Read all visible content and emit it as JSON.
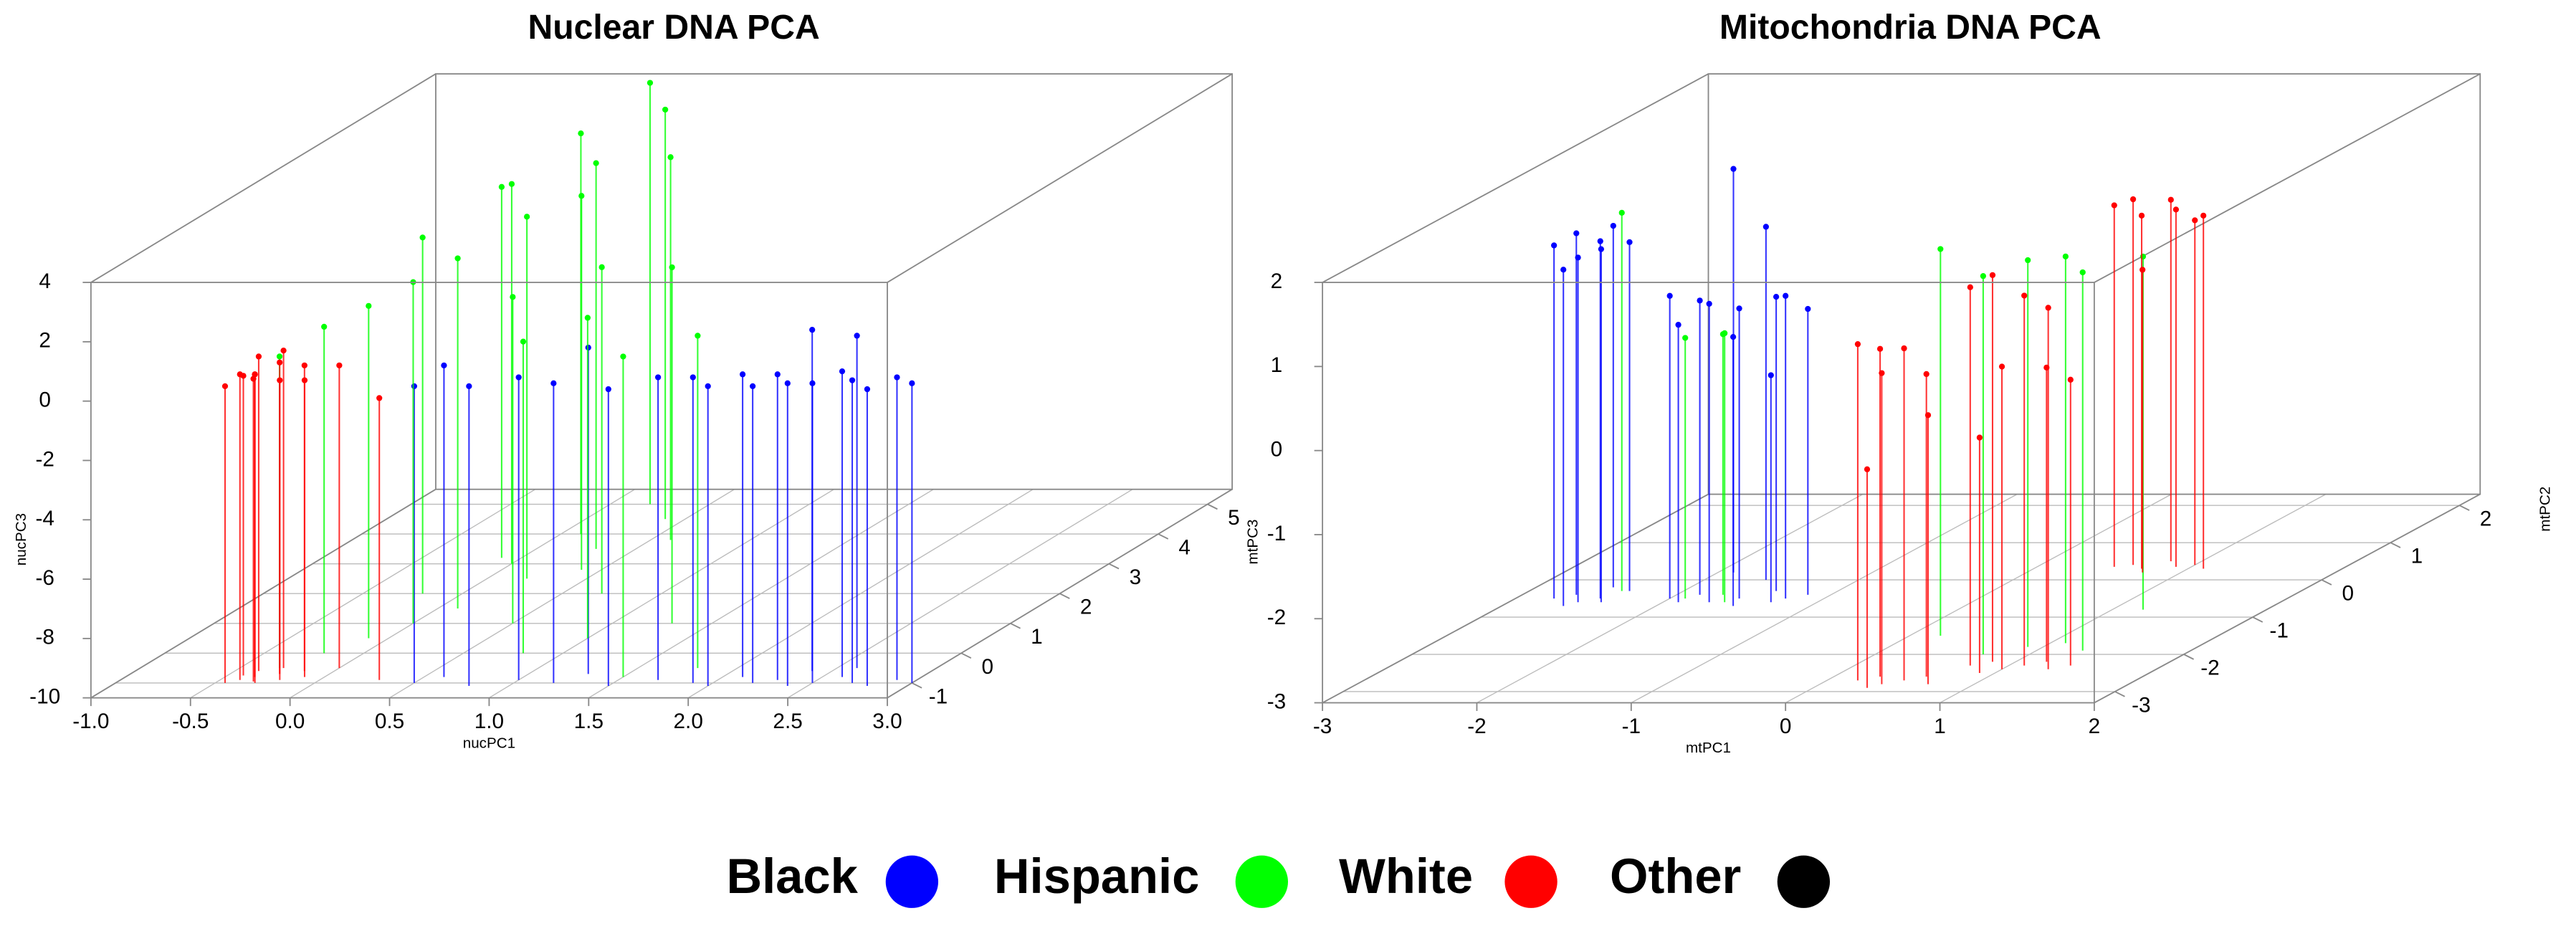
{
  "legend": [
    {
      "name": "Black",
      "color": "#0000ff"
    },
    {
      "name": "Hispanic",
      "color": "#00ff00"
    },
    {
      "name": "White",
      "color": "#ff0000"
    },
    {
      "name": "Other",
      "color": "#000000"
    }
  ],
  "chart_data": [
    {
      "type": "scatter3d",
      "title": "Nuclear DNA PCA",
      "xlabel": "nucPC1",
      "zlabel": "nucPC3",
      "xlim": [
        -1,
        3
      ],
      "ylim": [
        -1.5,
        5.5
      ],
      "zlim": [
        -10,
        4
      ],
      "xticks": [
        {
          "value": -1,
          "label": "-1.0"
        },
        {
          "value": -0.5,
          "label": "-0.5"
        },
        {
          "value": 0,
          "label": "0.0"
        },
        {
          "value": 0.5,
          "label": "0.5"
        },
        {
          "value": 1,
          "label": "1.0"
        },
        {
          "value": 1.5,
          "label": "1.5"
        },
        {
          "value": 2,
          "label": "2.0"
        },
        {
          "value": 2.5,
          "label": "2.5"
        },
        {
          "value": 3,
          "label": "3.0"
        }
      ],
      "yticks": [
        -1,
        0,
        1,
        2,
        3,
        4,
        5
      ],
      "zticks": [
        4,
        2,
        0,
        -2,
        -4,
        -6,
        -8,
        -10
      ],
      "series": [
        {
          "name": "Black",
          "x": [
            0.5,
            0.8,
            1.0,
            1.2,
            1.5,
            1.7,
            1.9,
            2.0,
            2.1,
            2.2,
            2.3,
            2.4,
            2.5,
            2.6,
            2.7,
            2.8,
            2.9,
            3.0,
            1.3,
            2.4,
            2.6,
            0.6
          ],
          "y": [
            -1,
            -1.1,
            -0.9,
            -1,
            -1.1,
            -0.9,
            -1,
            -1.1,
            -0.8,
            -1,
            -0.9,
            -1.1,
            -1,
            -0.8,
            -1,
            -1.1,
            -0.9,
            -1,
            -0.7,
            -0.6,
            -0.5,
            -0.8
          ],
          "z": [
            0,
            0.1,
            0.2,
            0.1,
            0,
            0.2,
            0.3,
            0.1,
            0.2,
            0,
            0.3,
            0.2,
            0.1,
            0.3,
            0.2,
            0,
            0.2,
            0.1,
            1,
            1.5,
            1.2,
            0.5
          ]
        },
        {
          "name": "Hispanic",
          "x": [
            -0.3,
            -0.2,
            -0.1,
            0,
            0.1,
            -0.2,
            0.2,
            0,
            0.3,
            0.1,
            0.4,
            0.2,
            0.5,
            0.7,
            1.0,
            1.3,
            1.8,
            -0.1,
            0.4,
            0.6,
            0.8,
            1.5
          ],
          "y": [
            -0.5,
            0,
            0.5,
            1,
            1.5,
            2,
            2.5,
            3,
            3.5,
            4,
            4.5,
            5,
            1,
            2,
            0.5,
            1,
            -0.5,
            3.2,
            2.8,
            3.8,
            0,
            -0.8
          ],
          "z": [
            0.5,
            1,
            1.2,
            1.5,
            1.8,
            2,
            2.2,
            2.8,
            3,
            3.5,
            3.8,
            4.2,
            1,
            1,
            0.8,
            2,
            1.2,
            2.5,
            2.6,
            2.9,
            0.5,
            0.8
          ]
        },
        {
          "name": "White",
          "x": [
            -0.45,
            -0.4,
            -0.35,
            -0.3,
            -0.25,
            -0.2,
            -0.15,
            -0.38,
            -0.28,
            -0.1,
            0,
            0.3,
            -0.42,
            -0.32
          ],
          "y": [
            -1,
            -0.9,
            -0.8,
            -1,
            -0.7,
            -0.9,
            -0.6,
            -0.6,
            -0.5,
            -0.8,
            -0.5,
            -0.9,
            -0.75,
            -0.95
          ],
          "z": [
            0,
            0.3,
            0.2,
            0.4,
            0.5,
            0.1,
            0.3,
            0.6,
            0.7,
            0,
            0.2,
            -0.5,
            0.1,
            0.2
          ]
        },
        {
          "name": "Other",
          "x": [],
          "y": [],
          "z": []
        }
      ]
    },
    {
      "type": "scatter3d",
      "title": "Mitochondria DNA PCA",
      "xlabel": "mtPC1",
      "ylabel": "mtPC2",
      "zlabel": "mtPC3",
      "xlim": [
        -3,
        2
      ],
      "ylim": [
        -3.3,
        2.3
      ],
      "zlim": [
        -3,
        2
      ],
      "xticks": [
        -3,
        -2,
        -1,
        0,
        1,
        2
      ],
      "yticks": [
        -3,
        -2,
        -1,
        0,
        1,
        2
      ],
      "zticks": [
        2,
        1,
        0,
        -1,
        -2,
        -3
      ],
      "series": [
        {
          "name": "Black",
          "x": [
            -2.75,
            -2.65,
            -2.55,
            -2.45,
            -2.35,
            -2.6,
            -2.5,
            -2.4,
            -1.9,
            -1.6,
            -2.0,
            -1.85,
            -1.7,
            -1.55,
            -1.4,
            -1.25,
            -1.15,
            -1.9,
            -1.5,
            -1.3
          ],
          "y": [
            -0.5,
            -0.4,
            -0.6,
            -0.5,
            -0.3,
            -0.7,
            -0.2,
            -0.6,
            0.2,
            0,
            -0.5,
            -0.4,
            -0.6,
            -0.5,
            -0.3,
            -0.5,
            -0.4,
            -0.6,
            -0.7,
            -0.6
          ],
          "z": [
            1.2,
            1.3,
            1.1,
            1.25,
            1.15,
            1.0,
            1.3,
            1.2,
            1.8,
            1.2,
            0.6,
            0.5,
            0.55,
            0.45,
            0.5,
            0.6,
            0.4,
            0.3,
            0.2,
            -0.3
          ]
        },
        {
          "name": "Hispanic",
          "x": [
            0.7,
            0.9,
            1.1,
            1.3,
            -1.9,
            -1.7,
            -1.6,
            -2.4,
            0.2,
            1.2
          ],
          "y": [
            -2.0,
            -1.8,
            -1.7,
            -1.9,
            -0.5,
            -0.4,
            -0.6,
            -0.3,
            -1.5,
            -0.8
          ],
          "z": [
            1.5,
            1.6,
            1.6,
            1.5,
            0.1,
            0.1,
            0.2,
            1.5,
            1.6,
            1.2
          ]
        },
        {
          "name": "White",
          "x": [
            0.2,
            0.3,
            0.4,
            0.5,
            0.6,
            0.7,
            0.35,
            0.75,
            0.85,
            1.0,
            1.1,
            1.2,
            1.3,
            1.4,
            0.9,
            0.5,
            0.6,
            0.7,
            0.8,
            0.9,
            1.0,
            1.1,
            0.75
          ],
          "y": [
            -2.7,
            -2.6,
            -2.8,
            -2.7,
            -2.6,
            -2.8,
            -2.9,
            -2.3,
            -2.2,
            -2.4,
            -2.3,
            -2.2,
            -2.4,
            -2.3,
            -2.5,
            0.35,
            0.4,
            0.3,
            0.5,
            0.35,
            0.4,
            0.3,
            0.2
          ],
          "z": [
            1,
            0.9,
            0.7,
            0.95,
            0.6,
            0.2,
            -0.4,
            1.5,
            1.6,
            0.6,
            1.4,
            0.5,
            1.3,
            0.4,
            -0.2,
            1.3,
            1.35,
            1.2,
            1.3,
            1.25,
            1.1,
            1.2,
            0.6
          ]
        },
        {
          "name": "Other",
          "x": [],
          "y": [],
          "z": []
        }
      ]
    }
  ]
}
